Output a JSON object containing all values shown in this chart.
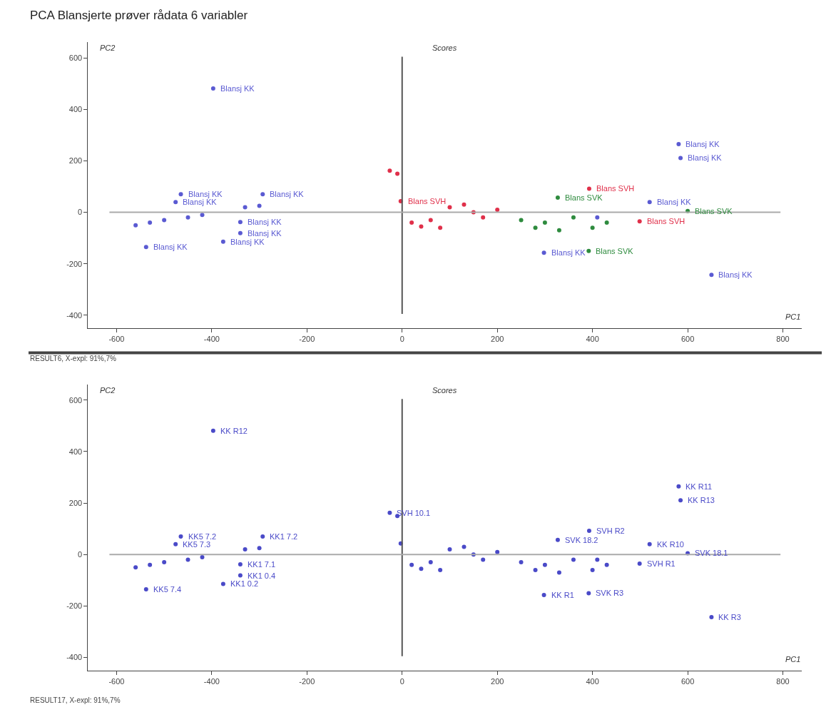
{
  "chart_data": [
    {
      "type": "scatter",
      "title": "PCA Blansjerte prøver rådata 6 variabler",
      "subtitle": "Scores",
      "xlabel": "PC1",
      "ylabel": "PC2",
      "xlim": [
        -660,
        840
      ],
      "xticks": [
        -600,
        -400,
        -200,
        0,
        200,
        400,
        600,
        800
      ],
      "ylim": [
        -450,
        660
      ],
      "yticks": [
        -400,
        -200,
        0,
        200,
        400,
        600
      ],
      "marker": "circle",
      "ref_lines": [
        {
          "axis": "x",
          "value": 0,
          "color": "#555555"
        },
        {
          "axis": "y",
          "value": 0,
          "color": "#aaaaaa"
        }
      ],
      "series": [
        {
          "color": "#5a5ad2",
          "x": [
            -465,
            -476,
            -293,
            -340,
            -340,
            -376,
            -538,
            -397,
            581,
            585,
            650,
            298,
            520,
            -560,
            -530,
            -500,
            -450,
            -420,
            -330,
            -300,
            410
          ],
          "values": [
            70,
            40,
            70,
            -38,
            -81,
            -114,
            -135,
            481,
            265,
            211,
            -243,
            -157,
            40,
            -50,
            -40,
            -30,
            -20,
            -10,
            20,
            25,
            -20
          ]
        },
        {
          "color": "#e0304a",
          "x": [
            393,
            499,
            -26,
            -10,
            -3,
            20,
            40,
            60,
            80,
            100,
            130,
            150,
            170,
            200
          ],
          "values": [
            92,
            -35,
            162,
            150,
            43,
            -40,
            -55,
            -30,
            -60,
            20,
            30,
            0,
            -20,
            10
          ]
        },
        {
          "color": "#2e8b3e",
          "x": [
            327,
            600,
            392,
            250,
            280,
            300,
            330,
            360,
            400,
            430
          ],
          "values": [
            57,
            5,
            -150,
            -30,
            -60,
            -40,
            -70,
            -20,
            -60,
            -40
          ]
        }
      ],
      "annotations": [
        {
          "text": "Blansj KK",
          "x": -465,
          "y": 70
        },
        {
          "text": "Blansj KK",
          "x": -476,
          "y": 40
        },
        {
          "text": "Blansj KK",
          "x": -293,
          "y": 70
        },
        {
          "text": "Blansj KK",
          "x": -340,
          "y": -38
        },
        {
          "text": "Blansj KK",
          "x": -340,
          "y": -81
        },
        {
          "text": "Blansj KK",
          "x": -376,
          "y": -114
        },
        {
          "text": "Blansj KK",
          "x": -538,
          "y": -135
        },
        {
          "text": "Blansj KK",
          "x": -397,
          "y": 481
        },
        {
          "text": "Blansj KK",
          "x": 581,
          "y": 265
        },
        {
          "text": "Blansj KK",
          "x": 585,
          "y": 211
        },
        {
          "text": "Blansj KK",
          "x": 650,
          "y": -243
        },
        {
          "text": "Blansj KK",
          "x": 298,
          "y": -157
        },
        {
          "text": "Blansj KK",
          "x": 520,
          "y": 40
        },
        {
          "text": "Blans SVH",
          "x": 393,
          "y": 92
        },
        {
          "text": "Blans SVH",
          "x": 499,
          "y": -35
        },
        {
          "text": "Blans SVH",
          "x": -3,
          "y": 43
        },
        {
          "text": "Blans SVK",
          "x": 327,
          "y": 57
        },
        {
          "text": "Blans SVK",
          "x": 600,
          "y": 5
        },
        {
          "text": "Blans SVK",
          "x": 392,
          "y": -150
        },
        "RESULT6, X-expl: 91%,7%"
      ]
    },
    {
      "type": "scatter",
      "subtitle": "Scores",
      "xlabel": "PC1",
      "ylabel": "PC2",
      "xlim": [
        -660,
        840
      ],
      "xticks": [
        -600,
        -400,
        -200,
        0,
        200,
        400,
        600,
        800
      ],
      "ylim": [
        -450,
        660
      ],
      "yticks": [
        -400,
        -200,
        0,
        200,
        400,
        600
      ],
      "marker": "circle",
      "ref_lines": [
        {
          "axis": "x",
          "value": 0,
          "color": "#555555"
        },
        {
          "axis": "y",
          "value": 0,
          "color": "#aaaaaa"
        }
      ],
      "series": [
        {
          "color": "#4a4ac8",
          "x": [
            -465,
            -476,
            -293,
            -340,
            -340,
            -376,
            -538,
            -397,
            581,
            585,
            650,
            298,
            520,
            -560,
            -530,
            -500,
            -450,
            -420,
            -330,
            -300,
            410,
            393,
            499,
            -26,
            -10,
            -3,
            20,
            40,
            60,
            80,
            100,
            130,
            150,
            170,
            200,
            327,
            600,
            392,
            250,
            280,
            300,
            330,
            360,
            400,
            430
          ],
          "values": [
            70,
            40,
            70,
            -38,
            -81,
            -114,
            -135,
            481,
            265,
            211,
            -243,
            -157,
            40,
            -50,
            -40,
            -30,
            -20,
            -10,
            20,
            25,
            -20,
            92,
            -35,
            162,
            150,
            43,
            -40,
            -55,
            -30,
            -60,
            20,
            30,
            0,
            -20,
            10,
            57,
            5,
            -150,
            -30,
            -60,
            -40,
            -70,
            -20,
            -60,
            -40
          ]
        }
      ],
      "annotations": [
        {
          "text": "KK5 7.2",
          "x": -465,
          "y": 70
        },
        {
          "text": "KK5 7.3",
          "x": -476,
          "y": 40
        },
        {
          "text": "KK1 7.2",
          "x": -293,
          "y": 70
        },
        {
          "text": "KK1 7.1",
          "x": -340,
          "y": -38
        },
        {
          "text": "KK1 0.4",
          "x": -340,
          "y": -81
        },
        {
          "text": "KK1 0.2",
          "x": -376,
          "y": -114
        },
        {
          "text": "KK5 7.4",
          "x": -538,
          "y": -135
        },
        {
          "text": "KK R12",
          "x": -397,
          "y": 481
        },
        {
          "text": "KK R11",
          "x": 581,
          "y": 265
        },
        {
          "text": "KK R13",
          "x": 585,
          "y": 211
        },
        {
          "text": "KK R3",
          "x": 650,
          "y": -243
        },
        {
          "text": "KK R1",
          "x": 298,
          "y": -157
        },
        {
          "text": "KK R10",
          "x": 520,
          "y": 40
        },
        {
          "text": "SVH R2",
          "x": 393,
          "y": 92
        },
        {
          "text": "SVH R1",
          "x": 499,
          "y": -35
        },
        {
          "text": "SVH 10.1",
          "x": -26,
          "y": 162
        },
        {
          "text": "SVK 18.2",
          "x": 327,
          "y": 57
        },
        {
          "text": "SVK 18.1",
          "x": 600,
          "y": 5
        },
        {
          "text": "SVK R3",
          "x": 392,
          "y": -150
        },
        "RESULT17, X-expl: 91%,7%"
      ]
    }
  ]
}
